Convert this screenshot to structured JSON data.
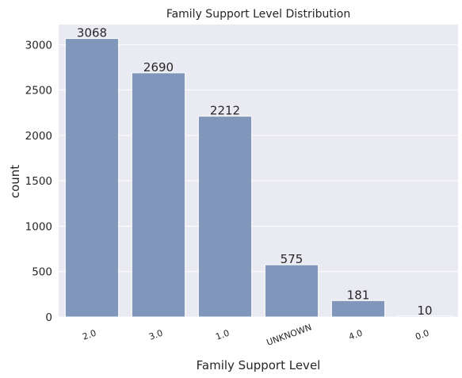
{
  "chart_data": {
    "type": "bar",
    "title": "Family Support Level Distribution",
    "xlabel": "Family Support Level",
    "ylabel": "count",
    "categories": [
      "2.0",
      "3.0",
      "1.0",
      "UNKNOWN",
      "4.0",
      "0.0"
    ],
    "values": [
      3068,
      2690,
      2212,
      575,
      181,
      10
    ],
    "data_labels": [
      "3068",
      "2690",
      "2212",
      "575",
      "181",
      "10"
    ],
    "yticks": [
      0,
      500,
      1000,
      1500,
      2000,
      2500,
      3000
    ],
    "ytick_labels": [
      "0",
      "500",
      "1000",
      "1500",
      "2000",
      "2500",
      "3000"
    ],
    "ylim": [
      0,
      3221.4
    ],
    "grid": true,
    "colors": {
      "bar": "#8096bb",
      "background": "#eaeaf2",
      "grid": "#ffffff",
      "text": "#262626"
    }
  }
}
